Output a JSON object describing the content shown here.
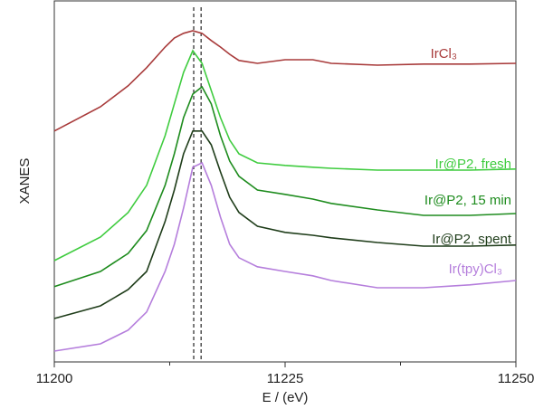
{
  "chart_data": {
    "type": "line",
    "y_label": "XANES",
    "x_label": "E / (eV)",
    "xlim": [
      11200,
      11250
    ],
    "xticks": [
      11200,
      11225,
      11250
    ],
    "xminor_ticks": [
      11212.5,
      11237.5
    ],
    "ylim": [
      0,
      1
    ],
    "vlines": [
      11215.1,
      11215.9
    ],
    "x": [
      11200,
      11205,
      11208,
      11210,
      11212,
      11213,
      11214,
      11215,
      11216,
      11217,
      11218,
      11219,
      11220,
      11222,
      11225,
      11228,
      11230,
      11235,
      11240,
      11245,
      11250
    ],
    "series": [
      {
        "name": "IrCl₃",
        "color": "#a83a3a",
        "values": [
          0.638,
          0.705,
          0.763,
          0.813,
          0.87,
          0.895,
          0.908,
          0.915,
          0.908,
          0.888,
          0.87,
          0.85,
          0.833,
          0.825,
          0.835,
          0.835,
          0.825,
          0.82,
          0.823,
          0.823,
          0.825
        ]
      },
      {
        "name": "Ir@P2, fresh",
        "color": "#3fcc3f",
        "values": [
          0.28,
          0.345,
          0.413,
          0.488,
          0.625,
          0.713,
          0.8,
          0.86,
          0.825,
          0.75,
          0.675,
          0.613,
          0.575,
          0.55,
          0.543,
          0.538,
          0.535,
          0.53,
          0.53,
          0.53,
          0.533
        ]
      },
      {
        "name": "Ir@P2, 15 min",
        "color": "#1e8c1e",
        "values": [
          0.208,
          0.25,
          0.3,
          0.363,
          0.488,
          0.575,
          0.675,
          0.74,
          0.76,
          0.713,
          0.625,
          0.555,
          0.513,
          0.475,
          0.463,
          0.45,
          0.438,
          0.42,
          0.405,
          0.405,
          0.41
        ]
      },
      {
        "name": "Ir@P2, spent",
        "color": "#1f3d1a",
        "values": [
          0.12,
          0.155,
          0.2,
          0.25,
          0.388,
          0.475,
          0.575,
          0.638,
          0.638,
          0.6,
          0.525,
          0.455,
          0.413,
          0.375,
          0.358,
          0.35,
          0.343,
          0.33,
          0.32,
          0.32,
          0.323
        ]
      },
      {
        "name": "Ir(tpy)Cl₃",
        "color": "#b57edc",
        "values": [
          0.03,
          0.05,
          0.088,
          0.138,
          0.25,
          0.325,
          0.425,
          0.538,
          0.55,
          0.488,
          0.4,
          0.325,
          0.288,
          0.263,
          0.25,
          0.238,
          0.225,
          0.205,
          0.205,
          0.213,
          0.225
        ]
      }
    ]
  }
}
